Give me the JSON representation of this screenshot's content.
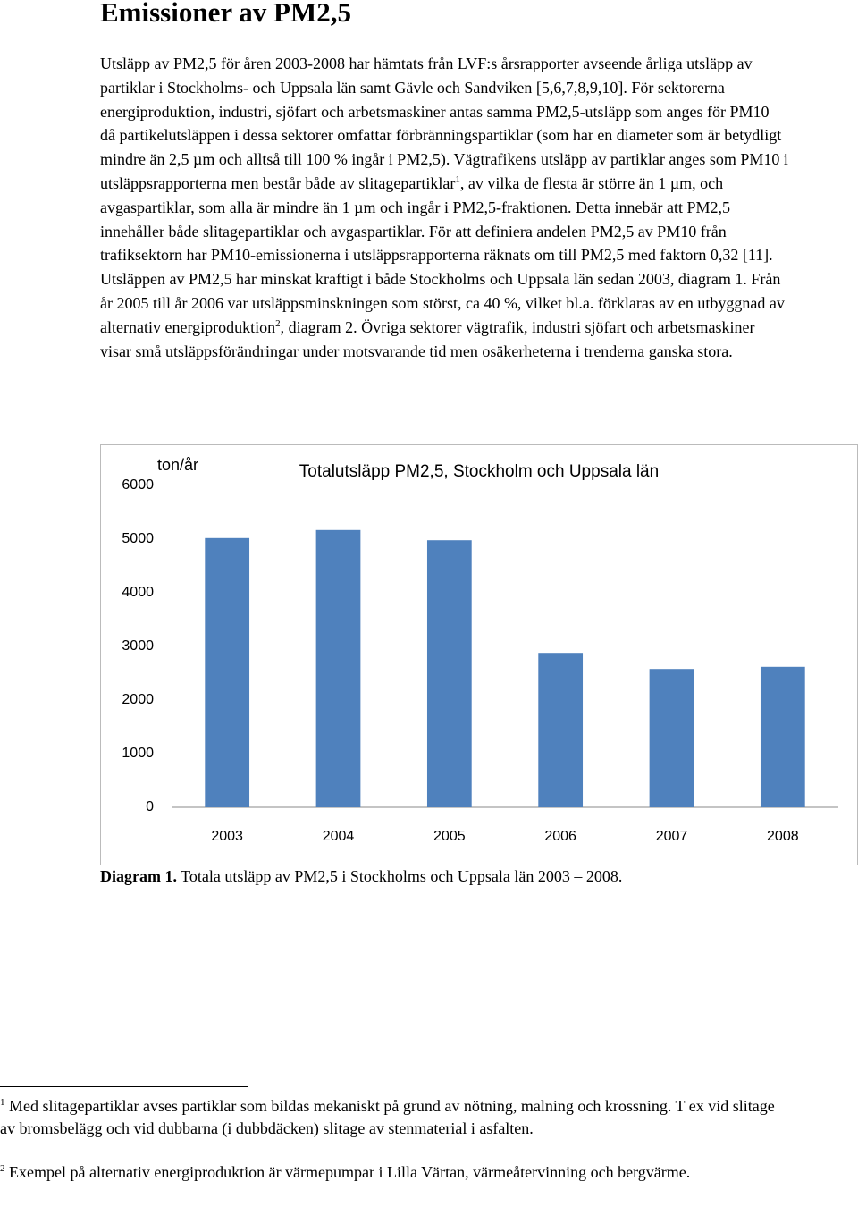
{
  "title": "Emissioner av PM2,5",
  "paragraph": [
    "Utsläpp av PM2,5 för åren 2003-2008 har hämtats från LVF:s årsrapporter avseende årliga utsläpp av partiklar i Stockholms- och Uppsala län samt Gävle och Sandviken [5,6,7,8,9,10]. För sektorerna energiproduktion, industri, sjöfart och arbetsmaskiner antas samma PM2,5-utsläpp som anges för PM10 då partikelutsläppen i dessa sektorer omfattar förbränningspartiklar (som har en diameter som är betydligt mindre än 2,5 µm och alltså till 100 % ingår i PM2,5). Vägtrafikens utsläpp av partiklar anges som PM10 i utsläppsrapporterna men består både av slitagepartiklar",
    "1",
    ", av vilka de flesta är större än 1 µm, och avgaspartiklar, som alla är mindre än 1 µm och ingår i PM2,5-fraktionen. Detta innebär att PM2,5 innehåller både slitagepartiklar och avgaspartiklar. För att definiera andelen PM2,5 av PM10 från trafiksektorn har PM10-emissionerna i utsläppsrapporterna räknats om till PM2,5 med faktorn 0,32 [11]. Utsläppen av PM2,5 har minskat kraftigt i både Stockholms och Uppsala län sedan 2003, diagram 1. Från år 2005 till år 2006 var utsläppsminskningen som störst, ca 40 %, vilket bl.a. förklaras av en utbyggnad av alternativ energiproduktion",
    "2",
    ", diagram 2.  Övriga sektorer vägtrafik, industri sjöfart och arbetsmaskiner visar små utsläppsförändringar under motsvarande tid men osäkerheterna i trenderna ganska stora."
  ],
  "chart_data": {
    "type": "bar",
    "title": "Totalutsläpp PM2,5, Stockholm och Uppsala län",
    "y_label": "ton/år",
    "categories": [
      "2003",
      "2004",
      "2005",
      "2006",
      "2007",
      "2008"
    ],
    "values": [
      5020,
      5170,
      4980,
      2880,
      2580,
      2620
    ],
    "color": "#4f81bd",
    "ylim": [
      0,
      6000
    ],
    "yticks": [
      0,
      1000,
      2000,
      3000,
      4000,
      5000,
      6000
    ],
    "grid": false
  },
  "caption": {
    "label": "Diagram 1.",
    "text": "Totala utsläpp av PM2,5 i Stockholms och Uppsala län 2003 – 2008."
  },
  "footnotes": [
    {
      "number": "1",
      "text": "Med slitagepartiklar avses partiklar som bildas mekaniskt på grund av nötning, malning och krossning. T ex vid slitage av bromsbelägg och vid dubbarna (i dubbdäcken) slitage av stenmaterial i asfalten."
    },
    {
      "number": "2",
      "text": "Exempel på alternativ energiproduktion är värmepumpar i Lilla Värtan, värmeåtervinning och bergvärme."
    }
  ]
}
